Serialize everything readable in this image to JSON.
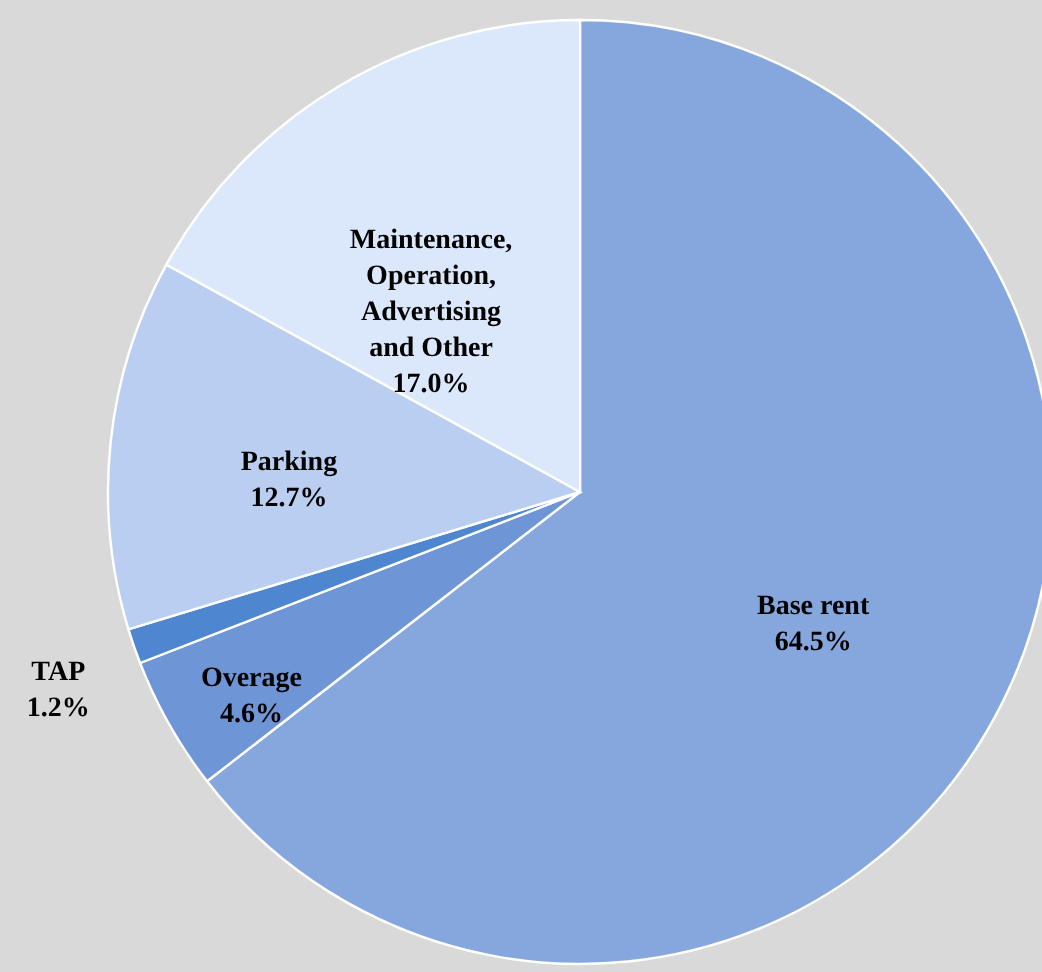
{
  "chart_data": {
    "type": "pie",
    "categories": [
      "Base rent",
      "Overage",
      "TAP",
      "Parking",
      "Maintenance, Operation, Advertising and Other"
    ],
    "values": [
      64.5,
      4.6,
      1.2,
      12.7,
      17.0
    ],
    "value_labels": [
      "64.5%",
      "4.6%",
      "1.2%",
      "12.7%",
      "17.0%"
    ],
    "colors": [
      "#86a6de",
      "#6e95d6",
      "#4f86d0",
      "#b9cef1",
      "#dbe7fa"
    ]
  }
}
